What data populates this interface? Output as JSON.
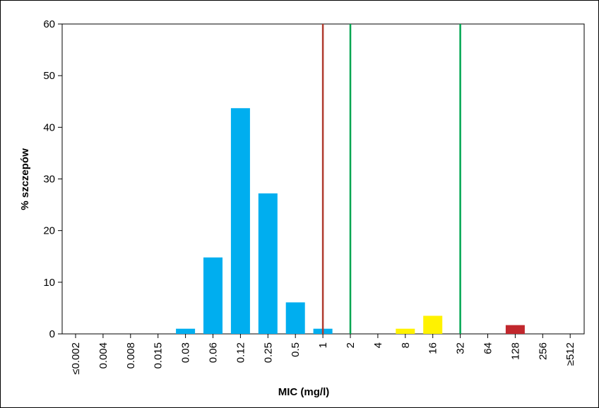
{
  "chart_data": {
    "type": "bar",
    "title": "",
    "xlabel": "MIC (mg/l)",
    "ylabel": "% szczepów",
    "ylim": [
      0,
      60
    ],
    "yticks": [
      "0",
      "10",
      "20",
      "30",
      "40",
      "50",
      "60"
    ],
    "categories": [
      "≤0.002",
      "0.004",
      "0.008",
      "0.015",
      "0.03",
      "0.06",
      "0.12",
      "0.25",
      "0.5",
      "1",
      "2",
      "4",
      "8",
      "16",
      "32",
      "64",
      "128",
      "256",
      "≥512"
    ],
    "values": [
      0,
      0,
      0,
      0,
      1.0,
      14.8,
      43.7,
      27.2,
      6.1,
      1.0,
      0,
      0,
      1.0,
      3.5,
      0,
      0,
      1.7,
      0,
      0
    ],
    "bar_colors": [
      "#00aeef",
      "#00aeef",
      "#00aeef",
      "#00aeef",
      "#00aeef",
      "#00aeef",
      "#00aeef",
      "#00aeef",
      "#00aeef",
      "#00aeef",
      "#00aeef",
      "#00aeef",
      "#fff200",
      "#fff200",
      "#fff200",
      "#fff200",
      "#c1272d",
      "#c1272d",
      "#c1272d"
    ],
    "reference_lines": [
      {
        "at_category": "1",
        "color": "#b03a2e"
      },
      {
        "at_category": "2",
        "color": "#00a651"
      },
      {
        "at_category": "32",
        "color": "#00a651"
      }
    ],
    "grid": false,
    "legend": "none"
  }
}
